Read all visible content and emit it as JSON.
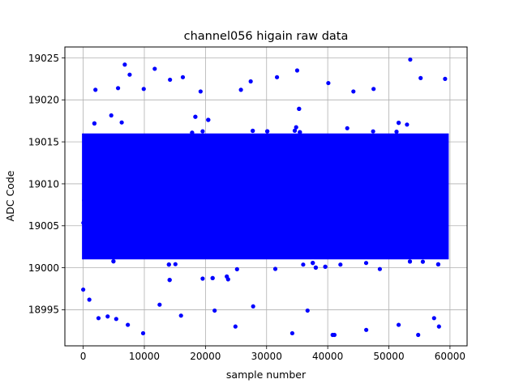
{
  "chart_data": {
    "type": "scatter",
    "title": "channel056 higain raw data",
    "xlabel": "sample number",
    "ylabel": "ADC Code",
    "xlim": [
      -3000,
      62800
    ],
    "ylim": [
      18990.7,
      19026.3
    ],
    "xticks": [
      0,
      10000,
      20000,
      30000,
      40000,
      50000,
      60000
    ],
    "xtick_labels": [
      "0",
      "10000",
      "20000",
      "30000",
      "40000",
      "50000",
      "60000"
    ],
    "yticks": [
      18995,
      19000,
      19005,
      19010,
      19015,
      19020,
      19025
    ],
    "ytick_labels": [
      "18995",
      "19000",
      "19005",
      "19010",
      "19015",
      "19020",
      "19025"
    ],
    "grid": true,
    "series": [
      {
        "marker": "circle",
        "color": "#0000ff",
        "x_range": [
          0,
          59600
        ],
        "n_points": 59600,
        "y_mean": 19008.5,
        "y_dense_band": [
          19001,
          19016
        ],
        "points": [
          {
            "x": 6800,
            "y": 19024.2
          },
          {
            "x": 53500,
            "y": 19024.8
          },
          {
            "x": 11700,
            "y": 19023.7
          },
          {
            "x": 35000,
            "y": 19023.5
          },
          {
            "x": 7600,
            "y": 19023.0
          },
          {
            "x": 55200,
            "y": 19022.6
          },
          {
            "x": 16300,
            "y": 19022.7
          },
          {
            "x": 14200,
            "y": 19022.4
          },
          {
            "x": 27400,
            "y": 19022.2
          },
          {
            "x": 59200,
            "y": 19022.5
          },
          {
            "x": 31700,
            "y": 19022.7
          },
          {
            "x": 40100,
            "y": 19022.0
          },
          {
            "x": 2000,
            "y": 19021.2
          },
          {
            "x": 5700,
            "y": 19021.4
          },
          {
            "x": 9900,
            "y": 19021.3
          },
          {
            "x": 19200,
            "y": 19021.0
          },
          {
            "x": 25800,
            "y": 19021.2
          },
          {
            "x": 44200,
            "y": 19021.0
          },
          {
            "x": 47500,
            "y": 19021.3
          },
          {
            "x": 0,
            "y": 18997.4
          },
          {
            "x": 1000,
            "y": 18996.2
          },
          {
            "x": 2500,
            "y": 18994.0
          },
          {
            "x": 4000,
            "y": 18994.2
          },
          {
            "x": 5400,
            "y": 18993.9
          },
          {
            "x": 7300,
            "y": 18993.2
          },
          {
            "x": 9800,
            "y": 18992.2
          },
          {
            "x": 12500,
            "y": 18995.6
          },
          {
            "x": 16000,
            "y": 18994.3
          },
          {
            "x": 21500,
            "y": 18994.9
          },
          {
            "x": 24900,
            "y": 18993.0
          },
          {
            "x": 27800,
            "y": 18995.4
          },
          {
            "x": 34200,
            "y": 18992.2
          },
          {
            "x": 36700,
            "y": 18994.9
          },
          {
            "x": 40800,
            "y": 18992.0
          },
          {
            "x": 41100,
            "y": 18992.0
          },
          {
            "x": 46300,
            "y": 18992.6
          },
          {
            "x": 51600,
            "y": 18993.2
          },
          {
            "x": 54800,
            "y": 18992.0
          },
          {
            "x": 58200,
            "y": 18993.0
          },
          {
            "x": 57400,
            "y": 18994.0
          }
        ]
      }
    ]
  }
}
